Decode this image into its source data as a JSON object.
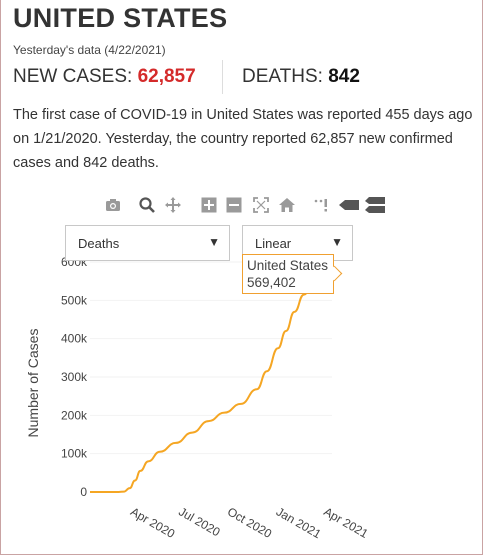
{
  "header": {
    "title": "UNITED STATES",
    "subtitle": "Yesterday's data (4/22/2021)",
    "cases_label": "NEW CASES: ",
    "cases_value": "62,857",
    "deaths_label": "DEATHS: ",
    "deaths_value": "842",
    "description": "The first case of COVID-19 in United States was reported 455 days ago on 1/21/2020. Yesterday, the country reported 62,857 new confirmed cases and 842 deaths."
  },
  "toolbar": {
    "icons": [
      "camera-icon",
      "zoom-icon",
      "pan-icon",
      "zoom-in-icon",
      "zoom-out-icon",
      "autoscale-icon",
      "home-icon",
      "spike-lines-icon",
      "hover-closest-icon",
      "hover-compare-icon"
    ]
  },
  "controls": {
    "metric_selected": "Deaths",
    "scale_selected": "Linear"
  },
  "tooltip": {
    "name": "United States",
    "value": "569,402"
  },
  "chart_data": {
    "type": "line",
    "title": "",
    "xlabel": "",
    "ylabel": "Number of Cases",
    "xlim": [
      "2020-01-21",
      "2021-04-22"
    ],
    "ylim": [
      0,
      600000
    ],
    "y_ticks": [
      0,
      100000,
      200000,
      300000,
      400000,
      500000,
      600000
    ],
    "y_tick_labels": [
      "0",
      "100k",
      "200k",
      "300k",
      "400k",
      "500k",
      "600k"
    ],
    "x_ticks": [
      "2020-04-01",
      "2020-07-01",
      "2020-10-01",
      "2021-01-01",
      "2021-04-01"
    ],
    "x_tick_labels": [
      "Apr 2020",
      "Jul 2020",
      "Oct 2020",
      "Jan 2021",
      "Apr 2021"
    ],
    "color": "#f5a623",
    "series": [
      {
        "x": [
          "2020-01-21",
          "2020-02-29",
          "2020-03-15",
          "2020-03-25",
          "2020-04-05",
          "2020-04-15",
          "2020-04-25",
          "2020-05-10",
          "2020-06-01",
          "2020-07-01",
          "2020-08-01",
          "2020-09-01",
          "2020-10-01",
          "2020-11-01",
          "2020-12-01",
          "2020-12-20",
          "2021-01-10",
          "2021-01-25",
          "2021-02-10",
          "2021-02-28",
          "2021-03-15",
          "2021-04-01",
          "2021-04-21"
        ],
        "values": [
          0,
          1,
          70,
          1000,
          10000,
          30000,
          55000,
          80000,
          105000,
          128000,
          155000,
          185000,
          207000,
          230000,
          268000,
          315000,
          375000,
          420000,
          470000,
          515000,
          540000,
          555000,
          569402
        ]
      }
    ]
  }
}
